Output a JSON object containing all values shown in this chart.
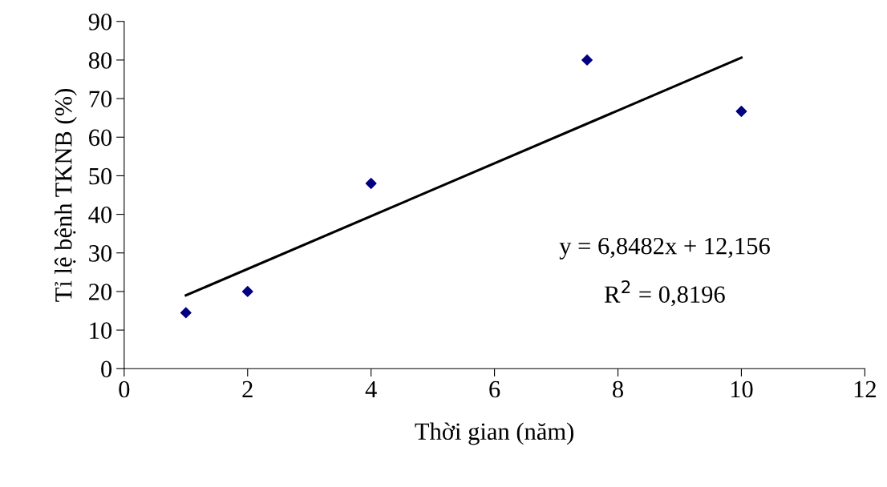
{
  "chart_data": {
    "type": "scatter",
    "xlabel": "Thời gian (năm)",
    "ylabel": "Tỉ lệ bệnh TKNB (%)",
    "xlim": [
      0,
      12
    ],
    "xticks": [
      0,
      2,
      4,
      6,
      8,
      10,
      12
    ],
    "ylim": [
      0,
      90
    ],
    "yticks": [
      0,
      10,
      20,
      30,
      40,
      50,
      60,
      70,
      80,
      90
    ],
    "grid": false,
    "legend": false,
    "series": [
      {
        "color": "#000080",
        "marker": "diamond",
        "x": [
          1,
          2,
          4,
          7.5,
          10
        ],
        "values": [
          14.5,
          20,
          48,
          80,
          66.7
        ]
      },
      {
        "type": "line",
        "color": "#000000",
        "marker": "none",
        "line_style": "solid",
        "x": [
          1,
          10
        ],
        "values": [
          19.0,
          80.6
        ]
      }
    ],
    "annotations": [
      "y = 6,8482x + 12,156",
      "R$^{2}$ = 0,8196"
    ]
  }
}
